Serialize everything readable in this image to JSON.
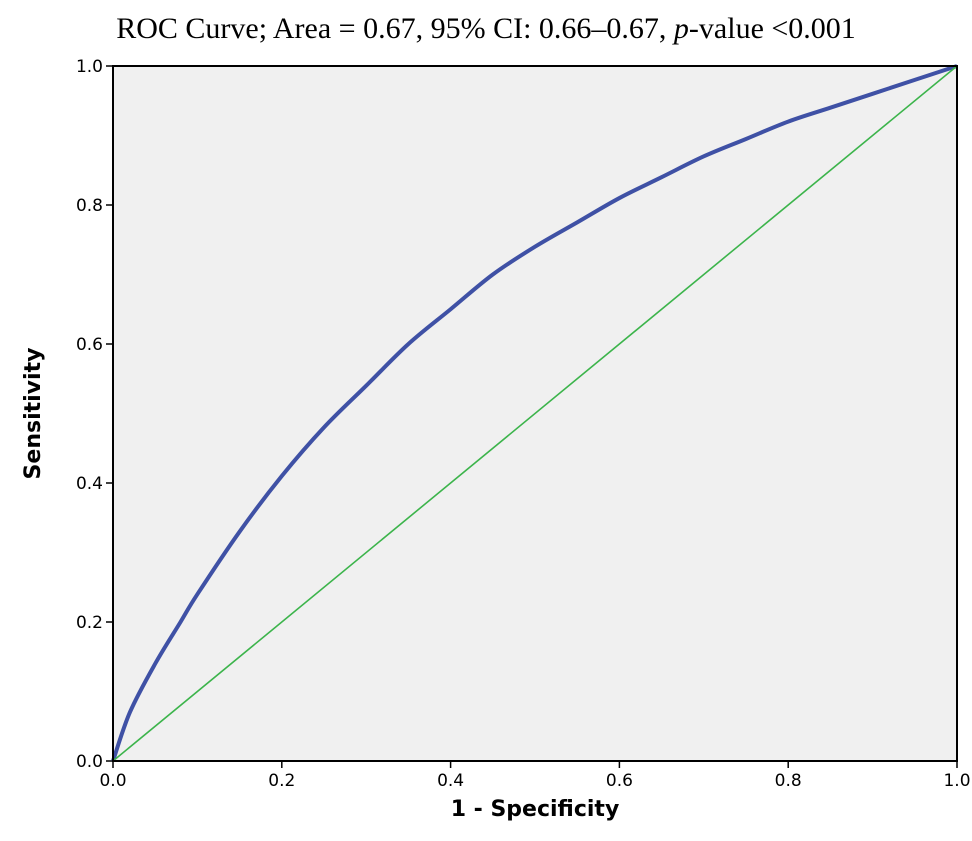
{
  "chart_data": {
    "type": "line",
    "title_parts": {
      "before": "ROC Curve; Area = 0.67, 95% CI: 0.66–0.67, ",
      "italic": "p",
      "after": "-value <0.001"
    },
    "xlabel": "1 - Specificity",
    "ylabel": "Sensitivity",
    "xlim": [
      0,
      1
    ],
    "ylim": [
      0,
      1
    ],
    "x_ticks": [
      "0.0",
      "0.2",
      "0.4",
      "0.6",
      "0.8",
      "1.0"
    ],
    "y_ticks": [
      "0.0",
      "0.2",
      "0.4",
      "0.6",
      "0.8",
      "1.0"
    ],
    "grid": false,
    "background": "#f0f0f0",
    "series": [
      {
        "color": "#3f51a5",
        "x": [
          0,
          0.02,
          0.05,
          0.08,
          0.1,
          0.15,
          0.2,
          0.25,
          0.3,
          0.35,
          0.4,
          0.45,
          0.5,
          0.55,
          0.6,
          0.65,
          0.7,
          0.75,
          0.8,
          0.85,
          0.9,
          0.95,
          1.0
        ],
        "y": [
          0,
          0.07,
          0.14,
          0.2,
          0.24,
          0.33,
          0.41,
          0.48,
          0.54,
          0.6,
          0.65,
          0.7,
          0.74,
          0.775,
          0.81,
          0.84,
          0.87,
          0.895,
          0.92,
          0.94,
          0.96,
          0.98,
          1.0
        ]
      },
      {
        "color": "#3cb44b",
        "x": [
          0,
          1
        ],
        "y": [
          0,
          1
        ]
      }
    ]
  }
}
